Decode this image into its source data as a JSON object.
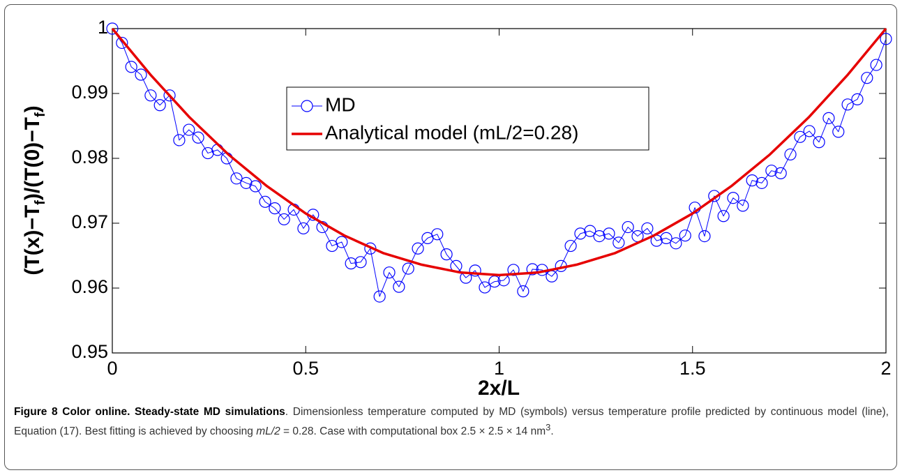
{
  "chart_data": {
    "type": "line",
    "xlabel": "2x/L",
    "ylabel_parts": [
      "(T(x)−T",
      "f",
      ")/(T(0)−T",
      "f",
      ")"
    ],
    "xlim": [
      0,
      2
    ],
    "xticks": [
      0,
      0.5,
      1,
      1.5,
      2
    ],
    "ylim": [
      0.95,
      1
    ],
    "yticks": [
      0.95,
      0.96,
      0.97,
      0.98,
      0.99,
      1
    ],
    "grid": false,
    "series": [
      {
        "name": "MD",
        "color": "#0000ff",
        "marker": "circle",
        "x": [
          0,
          0.025,
          0.049,
          0.074,
          0.099,
          0.123,
          0.148,
          0.173,
          0.198,
          0.222,
          0.247,
          0.272,
          0.296,
          0.321,
          0.346,
          0.37,
          0.395,
          0.42,
          0.444,
          0.469,
          0.494,
          0.519,
          0.543,
          0.568,
          0.593,
          0.617,
          0.642,
          0.667,
          0.691,
          0.716,
          0.741,
          0.765,
          0.79,
          0.815,
          0.84,
          0.864,
          0.889,
          0.914,
          0.938,
          0.963,
          0.988,
          1.012,
          1.037,
          1.062,
          1.086,
          1.111,
          1.136,
          1.16,
          1.185,
          1.21,
          1.235,
          1.259,
          1.284,
          1.309,
          1.333,
          1.358,
          1.383,
          1.407,
          1.432,
          1.457,
          1.481,
          1.506,
          1.531,
          1.556,
          1.58,
          1.605,
          1.63,
          1.654,
          1.679,
          1.704,
          1.728,
          1.753,
          1.778,
          1.802,
          1.827,
          1.852,
          1.877,
          1.901,
          1.926,
          1.951,
          1.975,
          2.0
        ],
        "values": [
          1.0,
          0.9978,
          0.9941,
          0.9929,
          0.9897,
          0.9882,
          0.9897,
          0.9828,
          0.9844,
          0.9832,
          0.9808,
          0.9813,
          0.98,
          0.9769,
          0.9762,
          0.9757,
          0.9733,
          0.9723,
          0.9706,
          0.9721,
          0.9692,
          0.9713,
          0.9694,
          0.9665,
          0.9671,
          0.9638,
          0.964,
          0.9661,
          0.9587,
          0.9624,
          0.9602,
          0.963,
          0.9661,
          0.9677,
          0.9683,
          0.9652,
          0.9634,
          0.9616,
          0.9627,
          0.9601,
          0.961,
          0.9612,
          0.9628,
          0.9595,
          0.9629,
          0.9628,
          0.9618,
          0.9634,
          0.9665,
          0.9684,
          0.9688,
          0.968,
          0.9684,
          0.967,
          0.9694,
          0.968,
          0.9692,
          0.9673,
          0.9677,
          0.9669,
          0.9681,
          0.9724,
          0.968,
          0.9742,
          0.9711,
          0.9739,
          0.9727,
          0.9766,
          0.9762,
          0.9781,
          0.9777,
          0.9806,
          0.9833,
          0.9842,
          0.9825,
          0.9862,
          0.9841,
          0.9883,
          0.9891,
          0.9924,
          0.9944,
          0.9984
        ]
      },
      {
        "name": "Analytical model (mL/2=0.28)",
        "color": "#e60000",
        "x": [
          0,
          0.1,
          0.2,
          0.3,
          0.4,
          0.5,
          0.6,
          0.7,
          0.8,
          0.9,
          1,
          1.1,
          1.2,
          1.3,
          1.4,
          1.5,
          1.6,
          1.7,
          1.8,
          1.9,
          2
        ],
        "values": [
          1,
          0.9928,
          0.9863,
          0.9806,
          0.9757,
          0.9715,
          0.9681,
          0.9654,
          0.9636,
          0.9624,
          0.962,
          0.9624,
          0.9636,
          0.9654,
          0.9681,
          0.9715,
          0.9757,
          0.9806,
          0.9863,
          0.9928,
          1
        ]
      }
    ]
  },
  "caption": {
    "title": "Figure 8 Color online. Steady-state MD simulations",
    "body": [
      ". Dimensionless temperature computed by MD (symbols) versus temperature profile predicted by continuous model (line), Equation (17). Best fitting is achieved by choosing ",
      "mL/2",
      " = 0.28. Case with computational box 2.5 × 2.5 × 14 nm",
      "3",
      "."
    ]
  }
}
